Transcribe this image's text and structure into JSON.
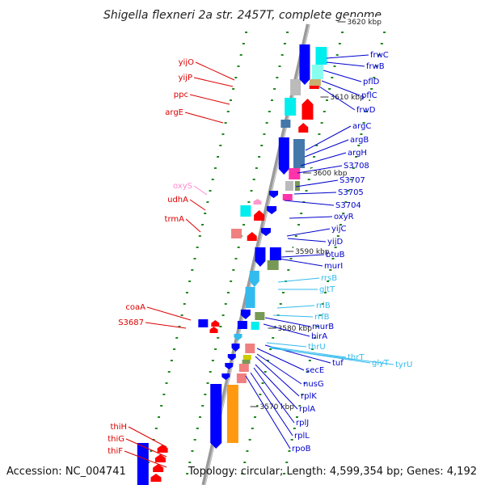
{
  "title": "Shigella flexneri 2a str. 2457T, complete genome",
  "accession": "Accession: NC_004741",
  "topology": "Topology: circular; Length: 4,599,354 bp; Genes: 4,192",
  "colors": {
    "forward_gene": "#ff0000",
    "reverse_gene": "#0000ff",
    "rna_gene": "#33bbee",
    "pseudo_gene": "#ff99cc",
    "backbone": "#999999",
    "tick": "#228822"
  },
  "scale": {
    "unit": "kbp",
    "ticks": [
      {
        "label": "3570 kbp"
      },
      {
        "label": "3580 kbp"
      },
      {
        "label": "3590 kbp"
      },
      {
        "label": "3600 kbp"
      },
      {
        "label": "3610 kbp"
      },
      {
        "label": "3620 kbp"
      }
    ]
  },
  "genes_left": [
    {
      "label": "yijO"
    },
    {
      "label": "yijP"
    },
    {
      "label": "ppc"
    },
    {
      "label": "argE"
    },
    {
      "label": "oxyS"
    },
    {
      "label": "udhA"
    },
    {
      "label": "trmA"
    },
    {
      "label": "coaA"
    },
    {
      "label": "S3687"
    },
    {
      "label": "thiH"
    },
    {
      "label": "thiG"
    },
    {
      "label": "thiF"
    }
  ],
  "genes_right": [
    {
      "label": "frwC"
    },
    {
      "label": "frwB"
    },
    {
      "label": "pflD"
    },
    {
      "label": "pflC"
    },
    {
      "label": "frwD"
    },
    {
      "label": "argC"
    },
    {
      "label": "argB"
    },
    {
      "label": "argH"
    },
    {
      "label": "S3708"
    },
    {
      "label": "S3707"
    },
    {
      "label": "S3705"
    },
    {
      "label": "S3704"
    },
    {
      "label": "oxyR"
    },
    {
      "label": "yijC"
    },
    {
      "label": "yijD"
    },
    {
      "label": "btuB"
    },
    {
      "label": "murI"
    },
    {
      "label": "rrsB"
    },
    {
      "label": "gltT"
    },
    {
      "label": "rrlB"
    },
    {
      "label": "rrfB"
    },
    {
      "label": "murB"
    },
    {
      "label": "birA"
    },
    {
      "label": "thrU"
    },
    {
      "label": "tuf"
    },
    {
      "label": "thrT"
    },
    {
      "label": "glyT"
    },
    {
      "label": "tyrU"
    },
    {
      "label": "secE"
    },
    {
      "label": "nusG"
    },
    {
      "label": "rplK"
    },
    {
      "label": "rplA"
    },
    {
      "label": "rplJ"
    },
    {
      "label": "rplL"
    },
    {
      "label": "rpoB"
    }
  ]
}
